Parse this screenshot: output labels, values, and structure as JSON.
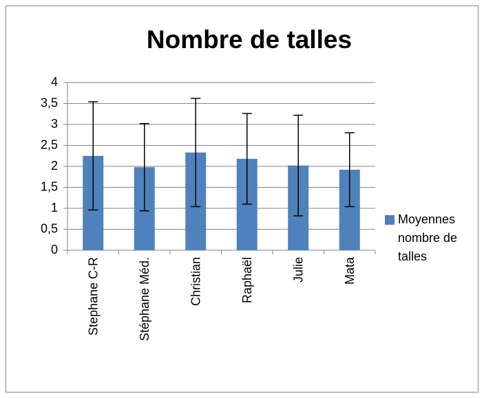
{
  "chart_data": {
    "type": "bar",
    "title": "Nombre de talles",
    "categories": [
      "Stephane C-R",
      "Stéphane Méd.",
      "Christian",
      "Raphaël",
      "Julie",
      "Mata"
    ],
    "series": [
      {
        "name": "Moyennes nombre de talles",
        "color": "#4f81bd",
        "values": [
          2.25,
          1.98,
          2.33,
          2.18,
          2.02,
          1.92
        ],
        "errors": [
          1.29,
          1.04,
          1.29,
          1.08,
          1.2,
          0.88
        ]
      }
    ],
    "ylim": [
      0,
      4
    ],
    "yticks": [
      0,
      {
        "value": 0.5,
        "label": "0,5"
      },
      1,
      {
        "value": 1.5,
        "label": "1,5"
      },
      2,
      {
        "value": 2.5,
        "label": "2,5"
      },
      3,
      {
        "value": 3.5,
        "label": "3,5"
      },
      4
    ],
    "grid": true,
    "legend": "right"
  }
}
